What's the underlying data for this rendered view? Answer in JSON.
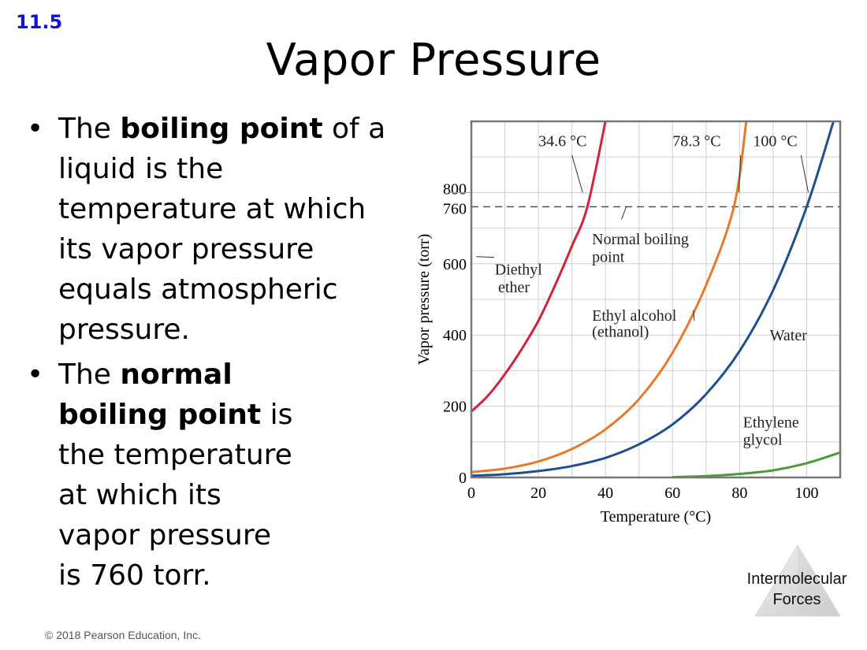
{
  "slide": {
    "section_number": "11.5",
    "title": "Vapor Pressure",
    "bullet1": {
      "pre": "The ",
      "bold": "boiling point",
      "post": " of a liquid is the temperature at which its vapor pressure equals atmospheric pressure."
    },
    "bullet2": {
      "pre": "The ",
      "bold": "normal boiling point",
      "post": " is the temperature at which its vapor pressure is 760 torr."
    },
    "footer": "© 2018 Pearson Education, Inc.",
    "logo": {
      "line1": "Intermolecular",
      "line2": "Forces",
      "icon": "triangle-logo-icon"
    }
  },
  "chart_data": {
    "type": "line",
    "xlabel": "Temperature (°C)",
    "ylabel": "Vapor pressure (torr)",
    "xlim": [
      0,
      110
    ],
    "ylim": [
      0,
      1000
    ],
    "xticks": [
      0,
      20,
      40,
      60,
      80,
      100
    ],
    "yticks": [
      0,
      200,
      400,
      600,
      800
    ],
    "extra_ytick": 760,
    "grid": true,
    "reference_line": {
      "y": 760,
      "style": "dashed",
      "label": "Normal boiling point"
    },
    "series": [
      {
        "name": "Diethyl ether",
        "color": "#d2233c",
        "x": [
          0,
          5,
          10,
          15,
          20,
          25,
          30,
          34.6,
          40
        ],
        "y": [
          185,
          230,
          290,
          360,
          440,
          540,
          650,
          760,
          1000
        ]
      },
      {
        "name": "Ethyl alcohol (ethanol)",
        "color": "#e8792a",
        "x": [
          0,
          10,
          20,
          30,
          40,
          50,
          60,
          70,
          78.3,
          82
        ],
        "y": [
          15,
          25,
          45,
          80,
          135,
          220,
          350,
          540,
          760,
          1000
        ]
      },
      {
        "name": "Water",
        "color": "#1f4f8f",
        "x": [
          0,
          10,
          20,
          30,
          40,
          50,
          60,
          70,
          80,
          90,
          100,
          108
        ],
        "y": [
          5,
          9,
          18,
          32,
          55,
          93,
          149,
          234,
          355,
          526,
          760,
          1000
        ]
      },
      {
        "name": "Ethylene glycol",
        "color": "#4d9a3a",
        "x": [
          60,
          70,
          80,
          90,
          100,
          110
        ],
        "y": [
          1,
          4,
          10,
          20,
          40,
          70
        ]
      }
    ],
    "annotations": [
      {
        "text": "34.6 °C"
      },
      {
        "text": "78.3 °C"
      },
      {
        "text": "100 °C"
      },
      {
        "text": "Normal boiling"
      },
      {
        "text": "point"
      },
      {
        "text": "Diethyl"
      },
      {
        "text": "ether"
      },
      {
        "text": "Ethyl alcohol"
      },
      {
        "text": "(ethanol)"
      },
      {
        "text": "Water"
      },
      {
        "text": "Ethylene"
      },
      {
        "text": "glycol"
      }
    ]
  }
}
